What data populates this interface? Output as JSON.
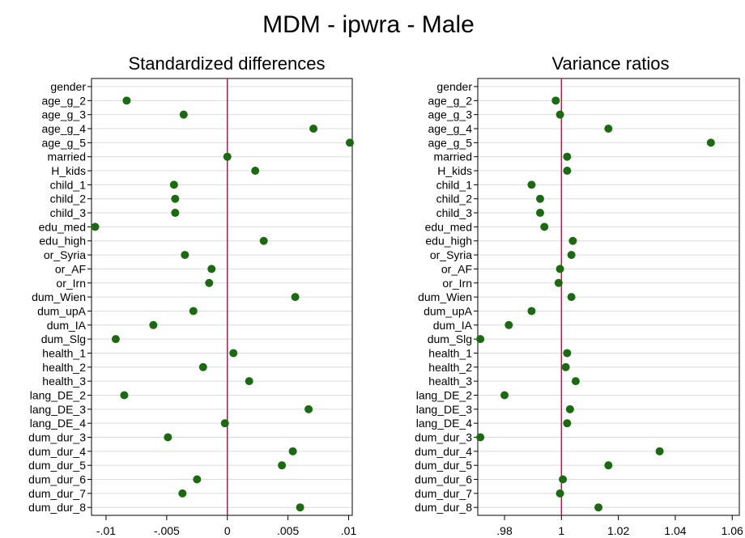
{
  "figure": {
    "title": "MDM - ipwra - Male",
    "background": "#ffffff",
    "marker_color": "#1a6b0f",
    "refline_color": "#b5174f",
    "grid_color": "#dcdcdc"
  },
  "chart_data": [
    {
      "type": "scatter",
      "title": "Standardized differences",
      "categories": [
        "gender",
        "age_g_2",
        "age_g_3",
        "age_g_4",
        "age_g_5",
        "married",
        "H_kids",
        "child_1",
        "child_2",
        "child_3",
        "edu_med",
        "edu_high",
        "or_Syria",
        "or_AF",
        "or_Irn",
        "dum_Wien",
        "dum_upA",
        "dum_IA",
        "dum_Slg",
        "health_1",
        "health_2",
        "health_3",
        "lang_DE_2",
        "lang_DE_3",
        "lang_DE_4",
        "dum_dur_3",
        "dum_dur_4",
        "dum_dur_5",
        "dum_dur_6",
        "dum_dur_7",
        "dum_dur_8"
      ],
      "values": [
        null,
        -0.0083,
        -0.0036,
        0.0071,
        0.0101,
        0.0,
        0.0023,
        -0.0044,
        -0.0043,
        -0.0043,
        -0.0109,
        0.003,
        -0.0035,
        -0.0013,
        -0.0015,
        0.0056,
        -0.0028,
        -0.0061,
        -0.0092,
        0.0005,
        -0.002,
        0.0018,
        -0.0085,
        0.0067,
        -0.0002,
        -0.0049,
        0.0054,
        0.0045,
        -0.0025,
        -0.0037,
        0.006
      ],
      "xticks": [
        -0.01,
        -0.005,
        0,
        0.005,
        0.01
      ],
      "xtick_labels": [
        "-.01",
        "-.005",
        "0",
        ".005",
        ".01"
      ],
      "xlim": [
        -0.0112,
        0.0103
      ],
      "reference_line": 0,
      "grid": true
    },
    {
      "type": "scatter",
      "title": "Variance ratios",
      "categories": [
        "gender",
        "age_g_2",
        "age_g_3",
        "age_g_4",
        "age_g_5",
        "married",
        "H_kids",
        "child_1",
        "child_2",
        "child_3",
        "edu_med",
        "edu_high",
        "or_Syria",
        "or_AF",
        "or_Irn",
        "dum_Wien",
        "dum_upA",
        "dum_IA",
        "dum_Slg",
        "health_1",
        "health_2",
        "health_3",
        "lang_DE_2",
        "lang_DE_3",
        "lang_DE_4",
        "dum_dur_3",
        "dum_dur_4",
        "dum_dur_5",
        "dum_dur_6",
        "dum_dur_7",
        "dum_dur_8"
      ],
      "values": [
        null,
        0.998,
        0.9995,
        1.0165,
        1.0525,
        1.002,
        1.002,
        0.9895,
        0.9925,
        0.9925,
        0.994,
        1.004,
        1.0035,
        0.9995,
        0.999,
        1.0035,
        0.9895,
        0.9815,
        0.9715,
        1.002,
        1.0015,
        1.005,
        0.98,
        1.003,
        1.002,
        0.9715,
        1.0345,
        1.0165,
        1.0005,
        0.9995,
        1.013
      ],
      "xticks": [
        0.98,
        1,
        1.02,
        1.04,
        1.06
      ],
      "xtick_labels": [
        ".98",
        "1",
        "1.02",
        "1.04",
        "1.06"
      ],
      "xlim": [
        0.9706,
        1.0625
      ],
      "reference_line": 1,
      "grid": true
    }
  ]
}
